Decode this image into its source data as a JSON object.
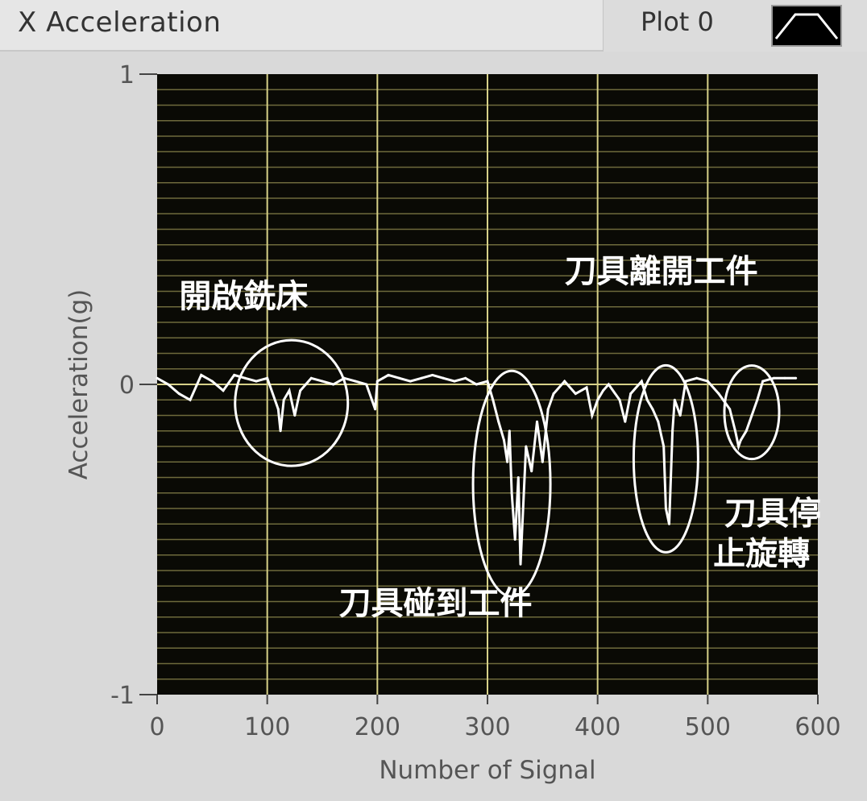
{
  "window": {
    "title": "X Acceleration",
    "legend_label": "Plot 0"
  },
  "colors": {
    "plot_background": "#0a0a05",
    "grid_major": "#d6d088",
    "grid_minor": "#6e6a3c",
    "trace": "#ffffff",
    "panel": "#d9d9d9"
  },
  "chart_data": {
    "type": "line",
    "title": "X Acceleration",
    "xlabel": "Number of Signal",
    "ylabel": "Acceleration(g)",
    "xlim": [
      0,
      600
    ],
    "ylim": [
      -1,
      1
    ],
    "xticks": [
      "0",
      "100",
      "200",
      "300",
      "400",
      "500",
      "600"
    ],
    "yticks": [
      "1",
      "0",
      "-1"
    ],
    "grid": true,
    "legend": "top-right",
    "series": [
      {
        "name": "Plot 0",
        "x": [
          0,
          10,
          20,
          30,
          40,
          50,
          60,
          70,
          80,
          90,
          100,
          110,
          112,
          115,
          120,
          125,
          128,
          130,
          135,
          140,
          150,
          160,
          170,
          180,
          190,
          198,
          200,
          205,
          210,
          220,
          230,
          240,
          250,
          260,
          270,
          280,
          290,
          300,
          305,
          310,
          315,
          318,
          320,
          322,
          325,
          328,
          330,
          335,
          340,
          345,
          350,
          355,
          360,
          370,
          380,
          390,
          395,
          400,
          405,
          410,
          420,
          425,
          430,
          440,
          445,
          450,
          455,
          460,
          462,
          465,
          468,
          470,
          475,
          480,
          490,
          500,
          510,
          520,
          525,
          528,
          530,
          535,
          540,
          545,
          550,
          560,
          570,
          580
        ],
        "y": [
          0.02,
          0.0,
          -0.03,
          -0.05,
          0.03,
          0.01,
          -0.02,
          0.03,
          0.02,
          0.01,
          0.02,
          -0.08,
          -0.15,
          -0.05,
          -0.02,
          -0.1,
          -0.05,
          -0.02,
          0.0,
          0.02,
          0.01,
          0.0,
          0.02,
          0.01,
          0.0,
          -0.08,
          0.01,
          0.02,
          0.03,
          0.02,
          0.01,
          0.02,
          0.03,
          0.02,
          0.01,
          0.02,
          0.0,
          0.01,
          -0.05,
          -0.12,
          -0.18,
          -0.25,
          -0.15,
          -0.35,
          -0.5,
          -0.3,
          -0.58,
          -0.2,
          -0.28,
          -0.12,
          -0.25,
          -0.08,
          -0.03,
          0.01,
          -0.03,
          -0.01,
          -0.1,
          -0.05,
          -0.02,
          0.0,
          -0.05,
          -0.12,
          -0.03,
          0.01,
          -0.05,
          -0.08,
          -0.12,
          -0.2,
          -0.4,
          -0.45,
          -0.15,
          -0.05,
          -0.1,
          0.01,
          0.02,
          0.01,
          -0.03,
          -0.08,
          -0.15,
          -0.2,
          -0.18,
          -0.15,
          -0.1,
          -0.05,
          0.01,
          0.02,
          0.02,
          0.02
        ]
      }
    ],
    "annotations": [
      {
        "text": "開啟銑床",
        "x": 20,
        "y": 0.25
      },
      {
        "text": "刀具碰到工件",
        "x": 165,
        "y": -0.74
      },
      {
        "text": "刀具離開工件",
        "x": 370,
        "y": 0.33
      },
      {
        "text": "刀具停",
        "x": 515,
        "y": -0.45
      },
      {
        "text": "止旋轉",
        "x": 505,
        "y": -0.58
      }
    ]
  }
}
